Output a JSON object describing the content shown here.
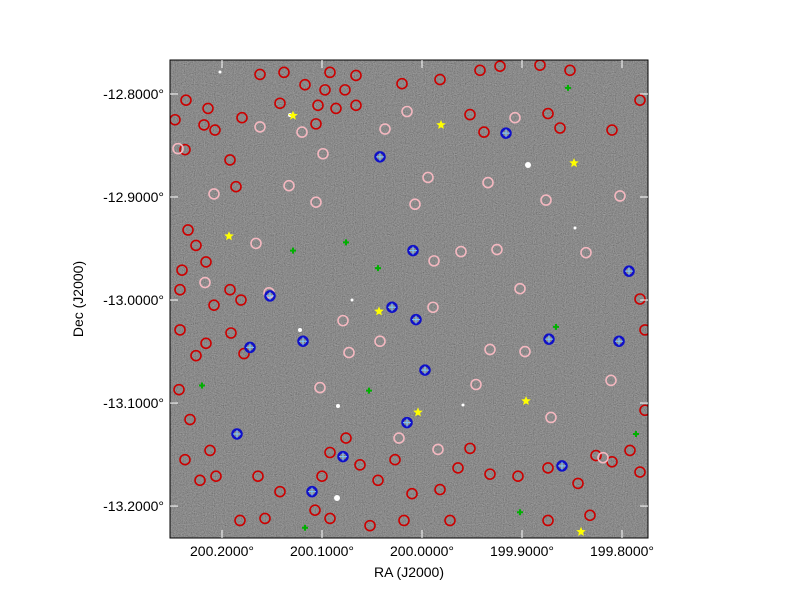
{
  "chart_data": {
    "type": "sky-overlay",
    "xlabel": "RA (J2000)",
    "ylabel": "Dec (J2000)",
    "xlim": [
      200.252,
      199.774
    ],
    "ylim": [
      -13.231,
      -12.767
    ],
    "xticks": [
      {
        "value": 200.2,
        "label": "200.2000°"
      },
      {
        "value": 200.1,
        "label": "200.1000°"
      },
      {
        "value": 200.0,
        "label": "200.0000°"
      },
      {
        "value": 199.9,
        "label": "199.9000°"
      },
      {
        "value": 199.8,
        "label": "199.8000°"
      }
    ],
    "yticks": [
      {
        "value": -12.8,
        "label": "-12.8000°"
      },
      {
        "value": -12.9,
        "label": "-12.9000°"
      },
      {
        "value": -13.0,
        "label": "-13.0000°"
      },
      {
        "value": -13.1,
        "label": "-13.1000°"
      },
      {
        "value": -13.2,
        "label": "-13.2000°"
      }
    ],
    "series": [
      {
        "marker": "circle",
        "color": "#cc0000",
        "x": [
          200.247,
          200.237,
          200.214,
          200.218,
          200.192,
          200.186,
          200.234,
          200.226,
          200.24,
          200.216,
          200.242,
          200.208,
          200.192,
          200.181,
          200.242,
          200.226,
          200.216,
          200.191,
          200.178,
          200.243,
          200.232,
          200.212,
          200.237,
          200.222,
          200.206,
          200.182,
          200.157,
          200.142,
          200.164,
          200.1,
          200.092,
          200.076,
          200.062,
          200.044,
          200.027,
          200.01,
          199.982,
          199.964,
          199.952,
          199.932,
          199.904,
          199.874,
          199.844,
          199.826,
          199.792,
          199.782,
          199.81,
          199.874,
          199.832,
          199.972,
          200.018,
          200.052,
          200.092,
          200.107,
          199.942,
          199.922,
          199.882,
          199.852,
          199.982,
          200.02,
          200.092,
          200.066,
          200.162,
          200.138,
          199.782,
          199.81,
          199.862,
          199.874,
          199.938,
          199.952,
          200.086,
          200.106,
          200.104,
          200.097,
          200.066,
          200.077,
          200.117,
          200.207,
          200.18,
          200.142,
          199.777,
          199.782,
          199.777,
          200.236
        ],
        "y": [
          -12.825,
          -12.854,
          -12.814,
          -12.83,
          -12.864,
          -12.89,
          -12.932,
          -12.947,
          -12.971,
          -12.963,
          -12.99,
          -13.005,
          -12.99,
          -13.0,
          -13.029,
          -13.054,
          -13.042,
          -13.032,
          -13.052,
          -13.087,
          -13.116,
          -13.146,
          -13.155,
          -13.175,
          -13.171,
          -13.214,
          -13.212,
          -13.186,
          -13.171,
          -13.171,
          -13.148,
          -13.134,
          -13.16,
          -13.175,
          -13.155,
          -13.188,
          -13.184,
          -13.163,
          -13.144,
          -13.169,
          -13.171,
          -13.163,
          -13.178,
          -13.151,
          -13.146,
          -13.167,
          -13.157,
          -13.214,
          -13.209,
          -13.214,
          -13.214,
          -13.219,
          -13.212,
          -13.204,
          -12.777,
          -12.773,
          -12.772,
          -12.777,
          -12.786,
          -12.79,
          -12.779,
          -12.782,
          -12.781,
          -12.779,
          -12.806,
          -12.835,
          -12.833,
          -12.819,
          -12.837,
          -12.82,
          -12.814,
          -12.829,
          -12.811,
          -12.796,
          -12.811,
          -12.796,
          -12.791,
          -12.835,
          -12.823,
          -12.809,
          -13.107,
          -12.999,
          -13.029,
          -12.806
        ]
      },
      {
        "marker": "circle",
        "color": "#f4b8c0",
        "x": [
          200.162,
          200.208,
          200.133,
          200.12,
          200.099,
          200.037,
          200.015,
          199.994,
          200.007,
          199.934,
          199.925,
          199.836,
          199.902,
          199.989,
          200.079,
          200.042,
          200.073,
          199.932,
          199.897,
          199.961,
          199.988,
          200.106,
          200.166,
          200.153,
          200.244,
          200.217,
          199.811,
          199.802,
          199.876,
          199.907,
          199.984,
          200.023,
          199.946,
          200.102,
          199.871,
          199.819
        ],
        "y": [
          -12.832,
          -12.897,
          -12.889,
          -12.837,
          -12.858,
          -12.834,
          -12.817,
          -12.881,
          -12.907,
          -12.886,
          -12.951,
          -12.954,
          -12.989,
          -13.007,
          -13.02,
          -13.04,
          -13.051,
          -13.048,
          -13.05,
          -12.953,
          -12.962,
          -12.905,
          -12.945,
          -12.993,
          -12.853,
          -12.983,
          -13.078,
          -12.899,
          -12.903,
          -12.823,
          -13.145,
          -13.134,
          -13.082,
          -13.085,
          -13.114,
          -13.153
        ]
      },
      {
        "marker": "circle-cross",
        "color": "#1010c8",
        "x": [
          200.042,
          200.009,
          200.03,
          200.006,
          200.152,
          200.119,
          200.172,
          199.997,
          199.873,
          199.803,
          200.015,
          200.079,
          200.11,
          199.916,
          199.793,
          200.185,
          199.86
        ],
        "y": [
          -12.861,
          -12.952,
          -13.007,
          -13.019,
          -12.996,
          -13.04,
          -13.046,
          -13.068,
          -13.038,
          -13.04,
          -13.119,
          -13.152,
          -13.186,
          -12.838,
          -12.972,
          -13.13,
          -13.161
        ]
      },
      {
        "marker": "cross",
        "color": "#00b000",
        "x": [
          200.076,
          200.044,
          200.129,
          200.22,
          200.053,
          199.866,
          199.786,
          199.902,
          200.117,
          199.854
        ],
        "y": [
          -12.944,
          -12.969,
          -12.952,
          -13.083,
          -13.088,
          -13.026,
          -13.13,
          -13.206,
          -13.221,
          -12.794
        ]
      },
      {
        "marker": "star",
        "color": "#ffff00",
        "x": [
          200.129,
          199.981,
          199.848,
          200.193,
          200.043,
          199.896,
          200.004,
          199.841
        ],
        "y": [
          -12.821,
          -12.83,
          -12.867,
          -12.938,
          -13.011,
          -13.098,
          -13.109,
          -13.225
        ]
      }
    ]
  }
}
